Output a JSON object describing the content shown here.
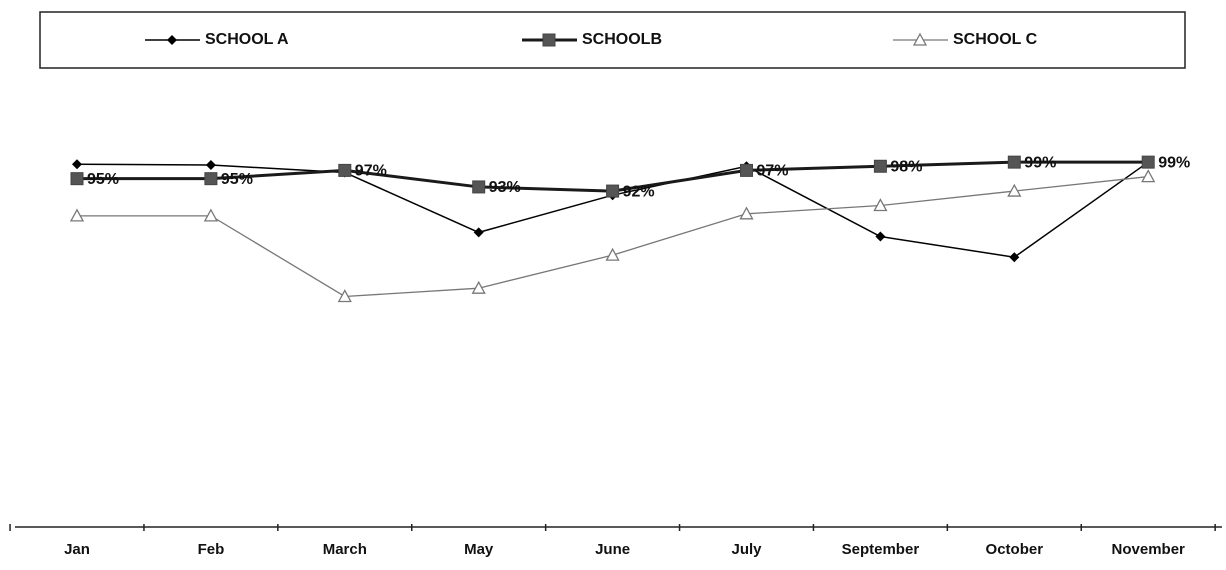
{
  "chart_data": {
    "type": "line",
    "categories": [
      "Jan",
      "Feb",
      "March",
      "May",
      "June",
      "July",
      "September",
      "October",
      "November"
    ],
    "series": [
      {
        "name": "SCHOOL A",
        "color": "#000000",
        "marker": "diamond",
        "values": [
          98.5,
          98.3,
          96.5,
          82,
          91,
          98,
          81,
          76,
          99
        ]
      },
      {
        "name": "SCHOOLB",
        "color": "#1a1a1a",
        "marker": "square",
        "values": [
          95,
          95,
          97,
          93,
          92,
          97,
          98,
          99,
          99
        ],
        "value_labels": [
          "95%",
          "95%",
          "97%",
          "93%",
          "92%",
          "97%",
          "98%",
          "99%",
          "99%"
        ]
      },
      {
        "name": "SCHOOL C",
        "color": "#777777",
        "marker": "triangle",
        "values": [
          86,
          86,
          66.5,
          68.5,
          76.5,
          86.5,
          88.5,
          92,
          95.5
        ]
      }
    ],
    "ylim": [
      10,
      100
    ]
  }
}
